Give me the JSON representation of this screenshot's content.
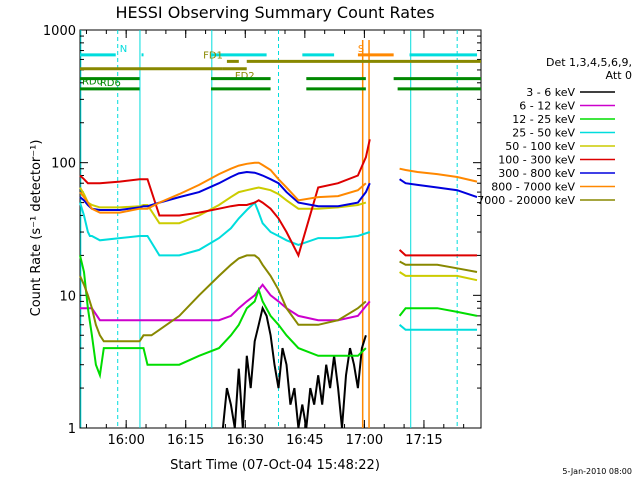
{
  "chart_data": {
    "type": "line",
    "title": "HESSI Observing Summary Count Rates",
    "xlabel": "Start Time (07-Oct-04 15:48:22)",
    "ylabel": "Count Rate (s⁻¹ detector⁻¹)",
    "yscale": "log",
    "ylim": [
      1,
      1000
    ],
    "xlim_minutes_from_start": [
      0,
      101
    ],
    "x_ticks": [
      "16:00",
      "16:15",
      "16:30",
      "16:45",
      "17:00",
      "17:15"
    ],
    "y_ticks": [
      "1",
      "10",
      "100",
      "1000"
    ],
    "legend_header": [
      "Det 1,3,4,5,6,9,",
      "Att 0"
    ],
    "legend_position": "right",
    "footer_date": "5-Jan-2010 08:00",
    "series": [
      {
        "name": "3 - 6 keV",
        "color": "#000000",
        "x": [
          36,
          37,
          38,
          39,
          40,
          41,
          42,
          43,
          44,
          45,
          46,
          47,
          48,
          49,
          50,
          51,
          52,
          53,
          54,
          55,
          56,
          57,
          58,
          59,
          60,
          61,
          62,
          63,
          64,
          65,
          66,
          67,
          68,
          69,
          70,
          71,
          72
        ],
        "y": [
          1,
          2,
          1.5,
          1,
          2.8,
          1,
          3.5,
          2,
          4.5,
          6,
          8,
          7,
          5,
          3,
          2,
          4,
          3,
          1.5,
          2,
          1,
          1.5,
          1,
          2,
          1.5,
          2.5,
          1.5,
          3,
          2,
          3.5,
          2,
          1,
          2.5,
          4,
          3,
          2,
          4,
          5
        ]
      },
      {
        "name": "6 - 12 keV",
        "color": "#cc00cc",
        "x": [
          0,
          2,
          3,
          5,
          10,
          15,
          16.5,
          17,
          18,
          20,
          25,
          30,
          35,
          38,
          40,
          42,
          44,
          45,
          46,
          48,
          50,
          52,
          55,
          60,
          65,
          70,
          73
        ],
        "y": [
          8,
          8,
          8,
          6.5,
          6.5,
          6.5,
          6.5,
          6.5,
          6.5,
          6.5,
          6.5,
          6.5,
          6.5,
          7,
          8,
          9,
          10,
          11,
          12,
          10,
          9,
          8,
          7,
          6.5,
          6.5,
          7,
          9
        ]
      },
      {
        "name": "12 - 25 keV",
        "color": "#00dd00",
        "x": [
          0,
          1,
          2,
          3,
          4,
          5,
          6,
          10,
          14,
          15,
          16,
          17,
          18,
          20,
          25,
          30,
          35,
          38,
          40,
          42,
          44,
          45,
          46,
          48,
          50,
          52,
          55,
          60,
          65,
          70,
          72
        ],
        "y": [
          20,
          15,
          8,
          5,
          3,
          2.5,
          4,
          4,
          4,
          4,
          4,
          3,
          3,
          3,
          3,
          3.5,
          4,
          5,
          6,
          8,
          9,
          11,
          9,
          7,
          6,
          5,
          4,
          3.5,
          3.5,
          3.5,
          4
        ]
      },
      {
        "name": "25 - 50 keV",
        "color": "#00dddd",
        "x": [
          0,
          1,
          2,
          2.5,
          3,
          5,
          10,
          15,
          16,
          17,
          20,
          25,
          30,
          35,
          38,
          40,
          42,
          44,
          45,
          46,
          48,
          50,
          52,
          55,
          60,
          65,
          70,
          73
        ],
        "y": [
          50,
          40,
          30,
          28,
          28,
          26,
          27,
          28,
          28,
          28,
          20,
          20,
          22,
          27,
          32,
          38,
          44,
          50,
          42,
          35,
          30,
          28,
          26,
          24,
          27,
          27,
          28,
          30
        ]
      },
      {
        "name": "50 - 100 keV",
        "color": "#cccc00",
        "x": [
          0,
          1,
          2,
          3,
          5,
          10,
          15,
          16,
          17,
          20,
          25,
          30,
          35,
          38,
          40,
          42,
          44,
          45,
          46,
          48,
          50,
          52,
          55,
          60,
          65,
          70,
          72
        ],
        "y": [
          65,
          58,
          50,
          48,
          46,
          46,
          47,
          48,
          48,
          35,
          35,
          40,
          48,
          55,
          60,
          62,
          64,
          65,
          64,
          62,
          58,
          52,
          45,
          45,
          46,
          48,
          50
        ]
      },
      {
        "name": "100 - 300 keV",
        "color": "#dd0000",
        "x": [
          0,
          1,
          2,
          3,
          5,
          10,
          15,
          16,
          17,
          20,
          25,
          30,
          35,
          38,
          40,
          42,
          44,
          45,
          46,
          48,
          50,
          52,
          55,
          60,
          65,
          70,
          72,
          73
        ],
        "y": [
          80,
          75,
          70,
          70,
          70,
          72,
          75,
          75,
          75,
          40,
          40,
          42,
          45,
          47,
          48,
          48,
          50,
          52,
          50,
          45,
          38,
          30,
          20,
          65,
          70,
          80,
          110,
          150
        ]
      },
      {
        "name": "300 - 800 keV",
        "color": "#0000dd",
        "x": [
          0,
          1,
          2,
          3,
          5,
          10,
          15,
          16,
          17,
          20,
          25,
          30,
          35,
          38,
          40,
          42,
          44,
          45,
          46,
          48,
          50,
          52,
          55,
          60,
          65,
          70,
          72,
          73
        ],
        "y": [
          55,
          52,
          48,
          45,
          44,
          44,
          46,
          47,
          47,
          50,
          55,
          60,
          70,
          78,
          83,
          85,
          84,
          82,
          80,
          75,
          70,
          60,
          50,
          47,
          47,
          50,
          60,
          70
        ]
      },
      {
        "name": "800 - 7000 keV",
        "color": "#ff8800",
        "x": [
          0,
          1,
          2,
          3,
          5,
          10,
          15,
          16,
          17,
          20,
          25,
          30,
          35,
          38,
          40,
          42,
          44,
          45,
          46,
          48,
          50,
          52,
          55,
          60,
          65,
          70,
          72
        ],
        "y": [
          60,
          55,
          50,
          45,
          42,
          42,
          45,
          45,
          45,
          50,
          58,
          68,
          82,
          90,
          95,
          98,
          100,
          100,
          96,
          88,
          75,
          65,
          52,
          55,
          56,
          62,
          70
        ]
      },
      {
        "name": "7000 - 20000 keV",
        "color": "#888800",
        "x": [
          0,
          1,
          2,
          3,
          4,
          5,
          6,
          10,
          14,
          15,
          16,
          17,
          18,
          20,
          25,
          30,
          35,
          38,
          40,
          42,
          44,
          45,
          46,
          48,
          50,
          52,
          55,
          60,
          65,
          70,
          72
        ],
        "y": [
          14,
          12,
          10,
          8,
          6,
          5,
          4.5,
          4.5,
          4.5,
          4.5,
          5,
          5,
          5,
          5.5,
          7,
          10,
          14,
          17,
          19,
          20,
          20,
          19,
          17,
          14,
          11,
          8,
          6,
          6,
          6.5,
          8,
          9
        ]
      }
    ],
    "series_after_gap": {
      "x": [
        80.5,
        82,
        85,
        90,
        95,
        100
      ],
      "values": {
        "3 - 6 keV": [
          null,
          null,
          null,
          null,
          null,
          null
        ],
        "6 - 12 keV": [
          null,
          null,
          null,
          null,
          null,
          null
        ],
        "12 - 25 keV": [
          7,
          8,
          8,
          8,
          7.5,
          7
        ],
        "25 - 50 keV": [
          6,
          5.5,
          5.5,
          5.5,
          5.5,
          5.5
        ],
        "50 - 100 keV": [
          15,
          14,
          14,
          14,
          14,
          13
        ],
        "100 - 300 keV": [
          22,
          20,
          20,
          20,
          20,
          20
        ],
        "300 - 800 keV": [
          75,
          70,
          68,
          65,
          62,
          55
        ],
        "800 - 7000 keV": [
          90,
          88,
          85,
          82,
          78,
          72
        ],
        "7000 - 20000 keV": [
          18,
          17,
          17,
          17,
          16,
          15
        ]
      }
    },
    "annotation_bars": [
      {
        "label": "N",
        "color": "#00dddd",
        "row_value": 650,
        "segments": [
          [
            0,
            9
          ],
          [
            15.5,
            16
          ],
          [
            33,
            47
          ],
          [
            56,
            64
          ],
          [
            83,
            100
          ]
        ]
      },
      {
        "label": "S",
        "color": "#ff8800",
        "row_value": 650,
        "segments": [
          [
            70,
            79
          ]
        ]
      },
      {
        "label": "FD1",
        "color": "#888800",
        "row_value": 580,
        "segments": [
          [
            37,
            40
          ],
          [
            42,
            101
          ]
        ]
      },
      {
        "label": "FD2",
        "color": "#888800",
        "row_value": 510,
        "segments": [
          [
            0,
            36
          ],
          [
            36,
            42
          ]
        ]
      },
      {
        "label": "RD0",
        "color": "#008800",
        "row_value": 430,
        "segments": [
          [
            0,
            15
          ],
          [
            33,
            48
          ],
          [
            57,
            72
          ],
          [
            79,
            101
          ]
        ]
      },
      {
        "label": "RD6",
        "color": "#008800",
        "row_value": 360,
        "segments": [
          [
            0,
            15
          ],
          [
            33,
            48
          ],
          [
            57,
            72
          ],
          [
            80,
            101
          ]
        ]
      }
    ]
  }
}
